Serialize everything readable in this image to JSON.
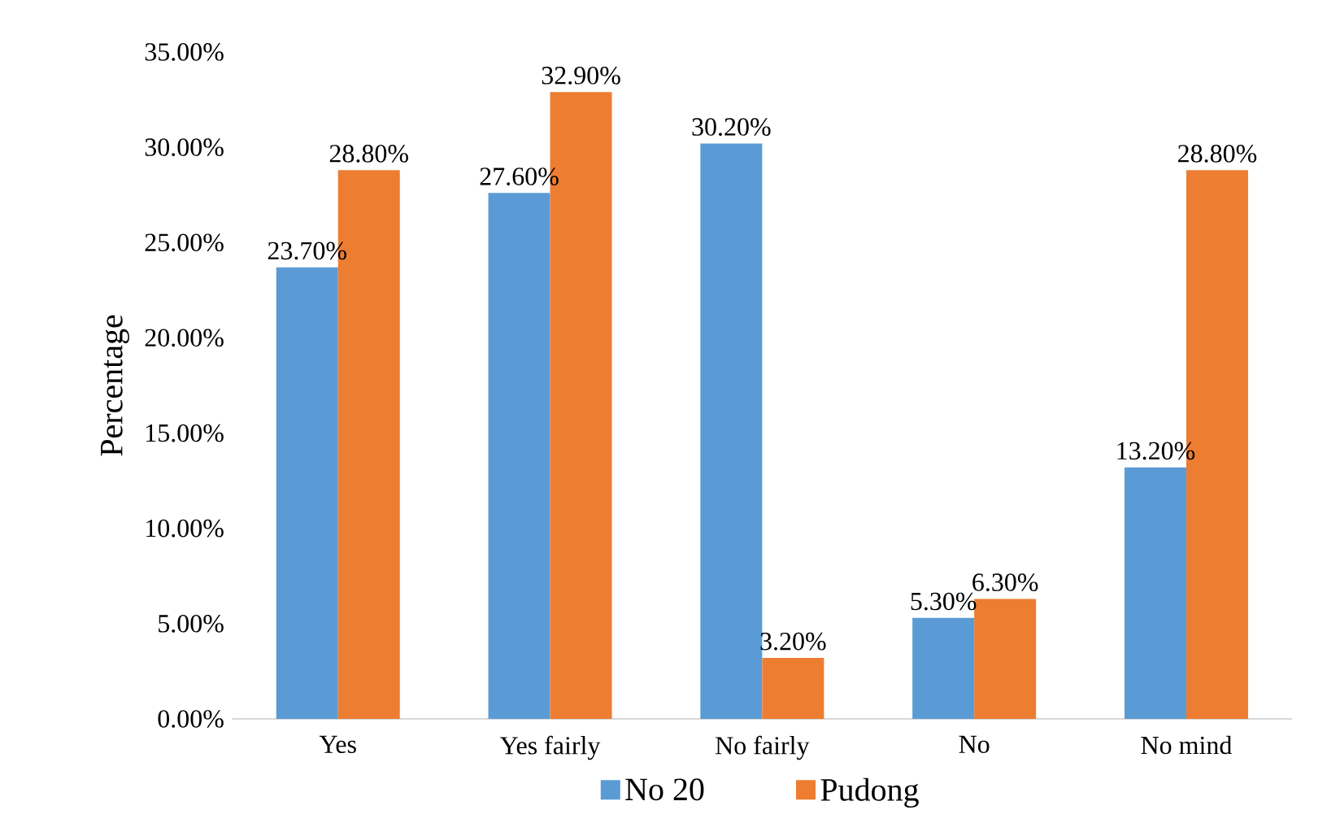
{
  "chart_data": {
    "type": "bar",
    "ylabel": "Percentage",
    "categories": [
      "Yes",
      "Yes fairly",
      "No fairly",
      "No",
      "No mind"
    ],
    "series": [
      {
        "name": "No 20",
        "color": "#5b9bd5",
        "values": [
          23.7,
          27.6,
          30.2,
          5.3,
          13.2
        ],
        "value_labels": [
          "23.70%",
          "27.60%",
          "30.20%",
          "5.30%",
          "13.20%"
        ]
      },
      {
        "name": "Pudong",
        "color": "#ed7d31",
        "values": [
          28.8,
          32.9,
          3.2,
          6.3,
          28.8
        ],
        "value_labels": [
          "28.80%",
          "32.90%",
          "3.20%",
          "6.30%",
          "28.80%"
        ]
      }
    ],
    "ylim": [
      0,
      35
    ],
    "yticks": [
      {
        "value": 0,
        "label": "0.00%"
      },
      {
        "value": 5,
        "label": "5.00%"
      },
      {
        "value": 10,
        "label": "10.00%"
      },
      {
        "value": 15,
        "label": "15.00%"
      },
      {
        "value": 20,
        "label": "20.00%"
      },
      {
        "value": 25,
        "label": "25.00%"
      },
      {
        "value": 30,
        "label": "30.00%"
      },
      {
        "value": 35,
        "label": "35.00%"
      }
    ],
    "legend": "bottom"
  }
}
